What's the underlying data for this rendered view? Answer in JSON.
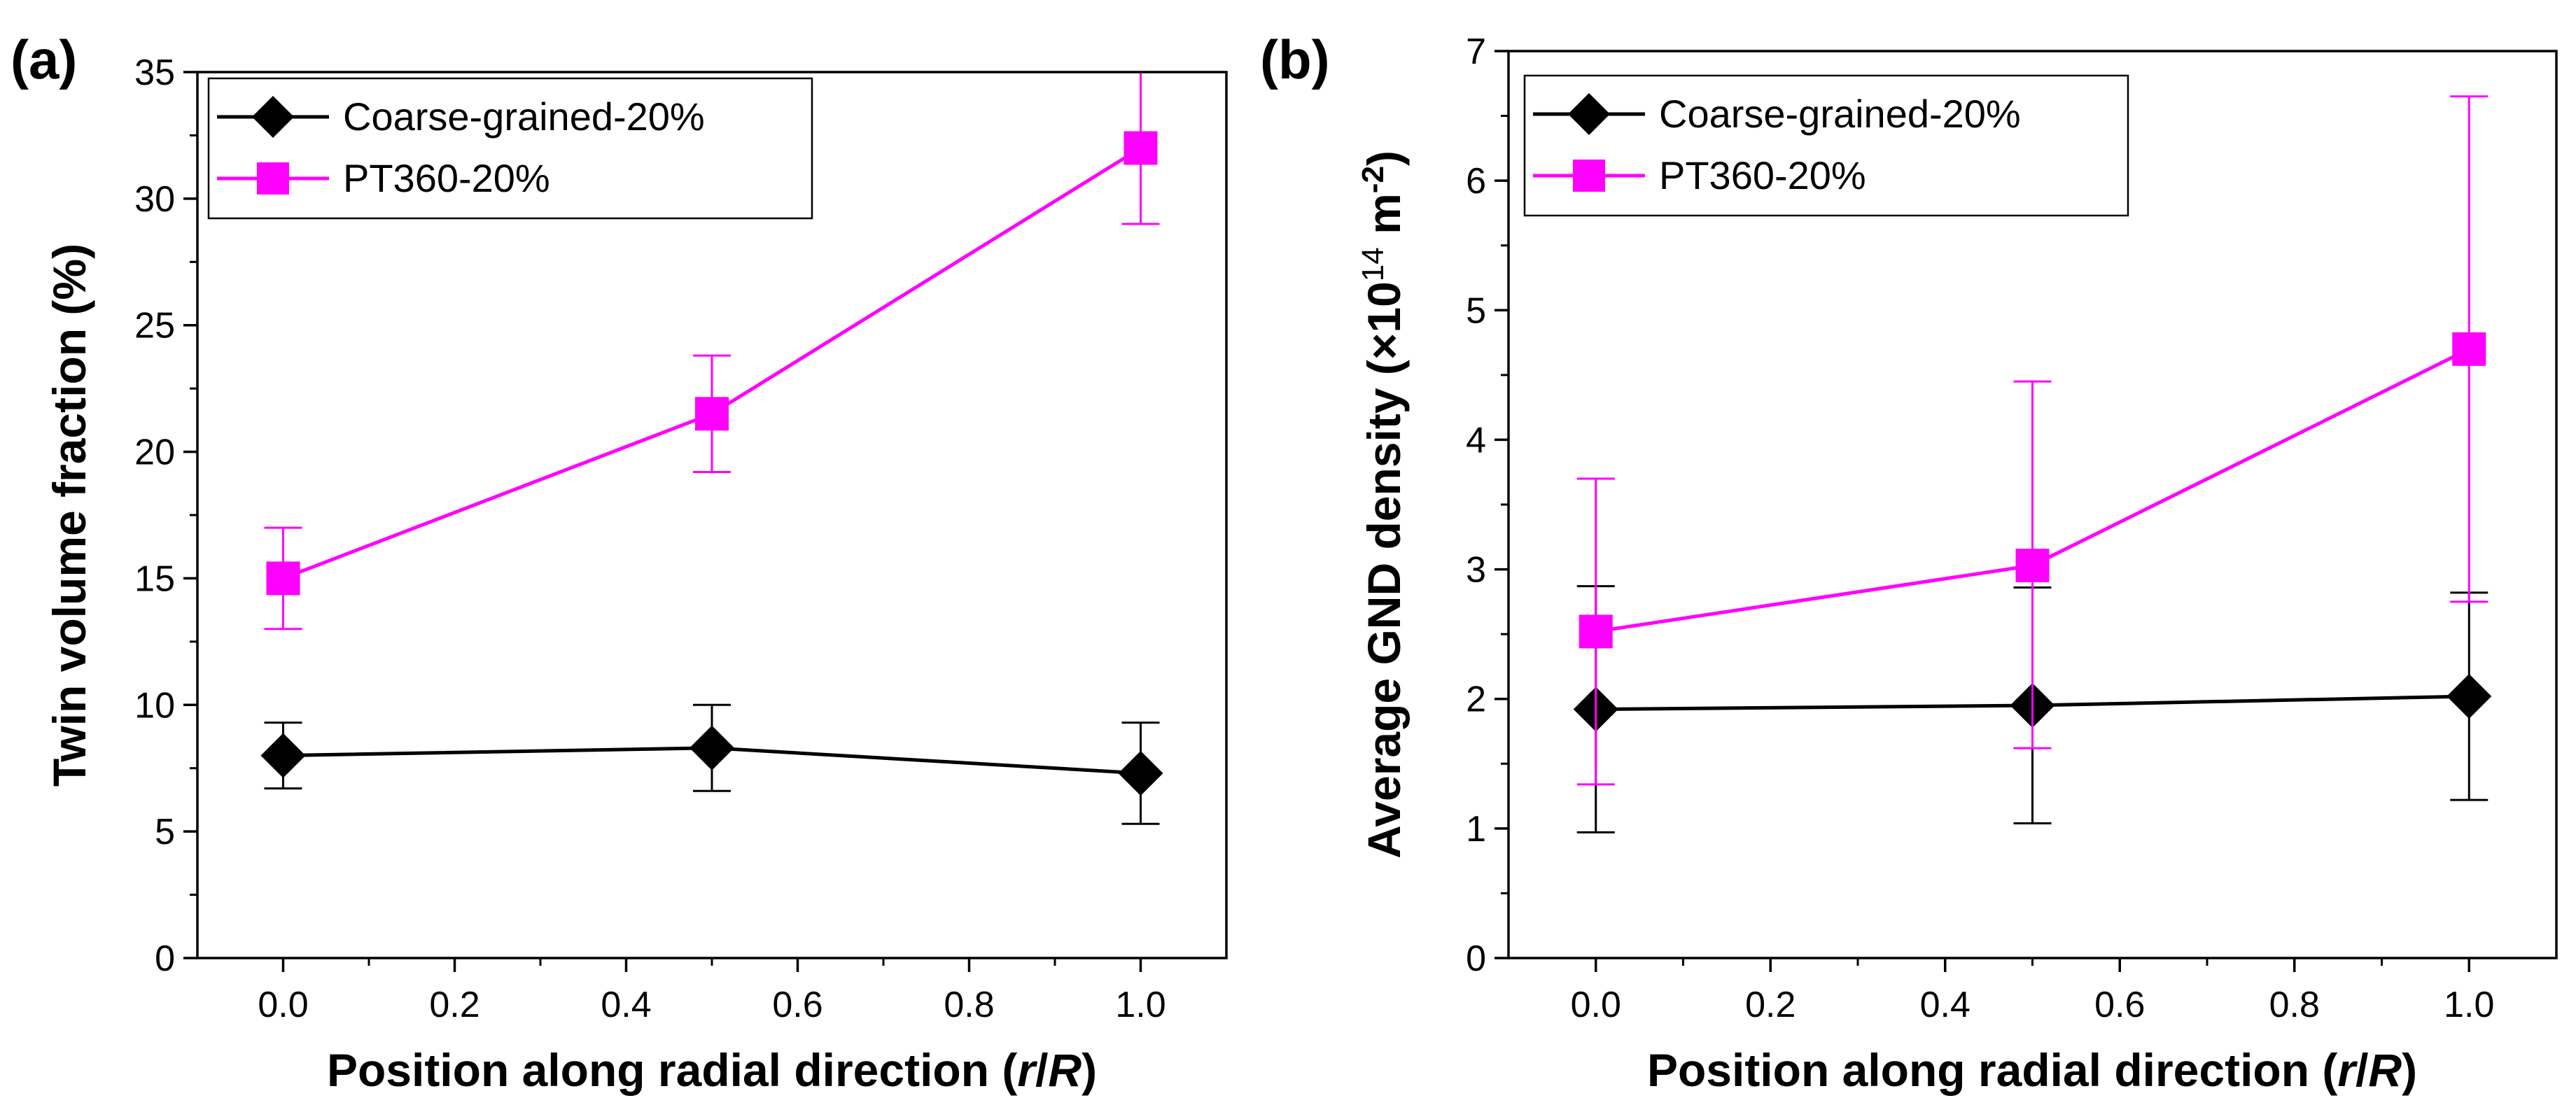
{
  "chart_data": [
    {
      "type": "line",
      "panel_label": "(a)",
      "xlabel_main": "Position along radial direction (",
      "xlabel_r": "r",
      "xlabel_slash": "/",
      "xlabel_R": "R",
      "xlabel_close": ")",
      "ylabel": "Twin volume fraction (%)",
      "xlim": [
        -0.1,
        1.1
      ],
      "ylim": [
        0,
        35
      ],
      "x_ticks": [
        "0.0",
        "0.2",
        "0.4",
        "0.6",
        "0.8",
        "1.0"
      ],
      "y_ticks": [
        "0",
        "5",
        "10",
        "15",
        "20",
        "25",
        "30",
        "35"
      ],
      "legend_position": "top-left",
      "series": [
        {
          "name": "Coarse-grained-20%",
          "color": "#000000",
          "marker": "diamond",
          "x": [
            0.0,
            0.5,
            1.0
          ],
          "y": [
            8.0,
            8.3,
            7.3
          ],
          "err_low": [
            6.7,
            6.6,
            5.3
          ],
          "err_high": [
            9.3,
            10.0,
            9.3
          ]
        },
        {
          "name": "PT360-20%",
          "color": "#ff00ff",
          "marker": "square",
          "x": [
            0.0,
            0.5,
            1.0
          ],
          "y": [
            15.0,
            21.5,
            32.0
          ],
          "err_low": [
            13.0,
            19.2,
            29.0
          ],
          "err_high": [
            17.0,
            23.8,
            35.0
          ]
        }
      ]
    },
    {
      "type": "line",
      "panel_label": "(b)",
      "xlabel_main": "Position along radial direction (",
      "xlabel_r": "r",
      "xlabel_slash": "/",
      "xlabel_R": "R",
      "xlabel_close": ")",
      "ylabel_main": "Average GND density (×10",
      "ylabel_exp1": "14",
      "ylabel_unit": " m",
      "ylabel_exp2": "-2",
      "ylabel_close": ")",
      "xlim": [
        -0.1,
        1.1
      ],
      "ylim": [
        0,
        7
      ],
      "x_ticks": [
        "0.0",
        "0.2",
        "0.4",
        "0.6",
        "0.8",
        "1.0"
      ],
      "y_ticks": [
        "0",
        "1",
        "2",
        "3",
        "4",
        "5",
        "6",
        "7"
      ],
      "legend_position": "top-left",
      "series": [
        {
          "name": "Coarse-grained-20%",
          "color": "#000000",
          "marker": "diamond",
          "x": [
            0.0,
            0.5,
            1.0
          ],
          "y": [
            1.92,
            1.95,
            2.02
          ],
          "err_low": [
            0.97,
            1.04,
            1.22
          ],
          "err_high": [
            2.87,
            2.86,
            2.82
          ]
        },
        {
          "name": "PT360-20%",
          "color": "#ff00ff",
          "marker": "square",
          "x": [
            0.0,
            0.5,
            1.0
          ],
          "y": [
            2.52,
            3.03,
            4.7
          ],
          "err_low": [
            1.34,
            1.62,
            2.75
          ],
          "err_high": [
            3.7,
            4.45,
            6.65
          ]
        }
      ]
    }
  ]
}
